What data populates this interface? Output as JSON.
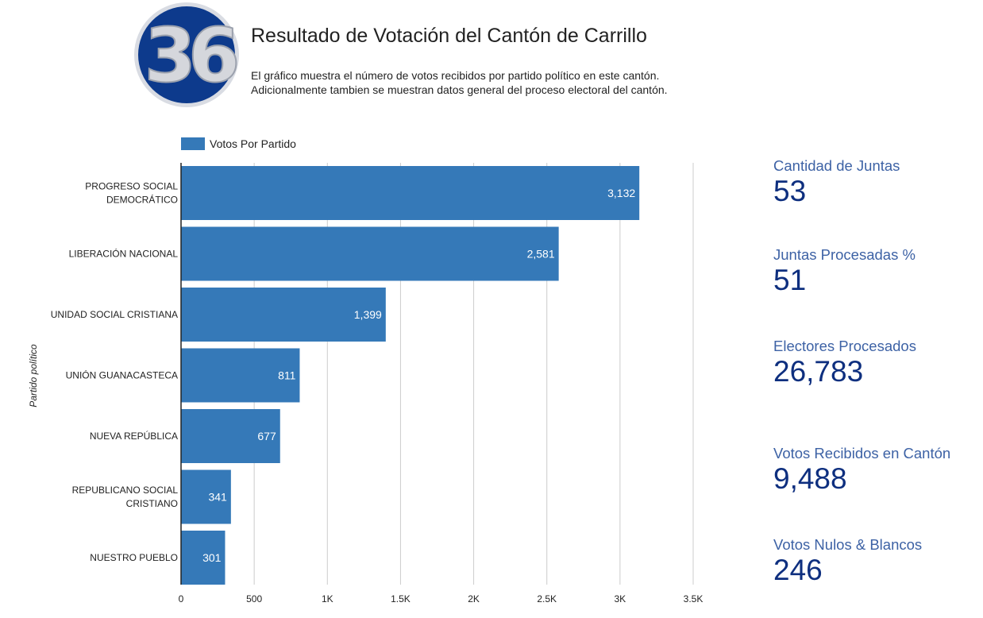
{
  "header": {
    "title": "Resultado de Votación del Cantón de Carrillo",
    "description_lines": [
      "El gráfico muestra el número de votos recibidos por partido político en este cantón.",
      "Adicionalmente tambien se muestran datos general del proceso electoral del cantón."
    ],
    "logo_text": "36"
  },
  "colors": {
    "bar": "#3579B8",
    "logo_blue": "#0D3A8C",
    "kpi_label": "#3D62A5",
    "kpi_value": "#0E2F7F"
  },
  "chart_data": {
    "type": "bar",
    "orientation": "horizontal",
    "categories": [
      [
        "PROGRESO SOCIAL",
        "DEMOCRÁTICO"
      ],
      [
        "LIBERACIÓN NACIONAL"
      ],
      [
        "UNIDAD SOCIAL CRISTIANA"
      ],
      [
        "UNIÓN GUANACASTECA"
      ],
      [
        "NUEVA REPÚBLICA"
      ],
      [
        "REPUBLICANO SOCIAL",
        "CRISTIANO"
      ],
      [
        "NUESTRO PUEBLO"
      ]
    ],
    "series": [
      {
        "name": "Votos Por Partido",
        "values": [
          3132,
          2581,
          1399,
          811,
          677,
          341,
          301
        ]
      }
    ],
    "data_labels": [
      "3,132",
      "2,581",
      "1,399",
      "811",
      "677",
      "341",
      "301"
    ],
    "xlim": [
      0,
      3500
    ],
    "x_ticks": [
      0,
      500,
      1000,
      1500,
      2000,
      2500,
      3000,
      3500
    ],
    "x_tick_labels": [
      "0",
      "500",
      "1K",
      "1.5K",
      "2K",
      "2.5K",
      "3K",
      "3.5K"
    ],
    "ylabel": "Partido político",
    "xlabel": "",
    "legend_position": "top-left",
    "grid": true
  },
  "kpis": [
    {
      "label": "Cantidad de Juntas",
      "value": "53"
    },
    {
      "label": "Juntas Procesadas %",
      "value": "51"
    },
    {
      "label": "Electores Procesados",
      "value": "26,783"
    },
    {
      "label": "Votos Recibidos en Cantón",
      "value": "9,488"
    },
    {
      "label": "Votos Nulos & Blancos",
      "value": "246"
    }
  ]
}
